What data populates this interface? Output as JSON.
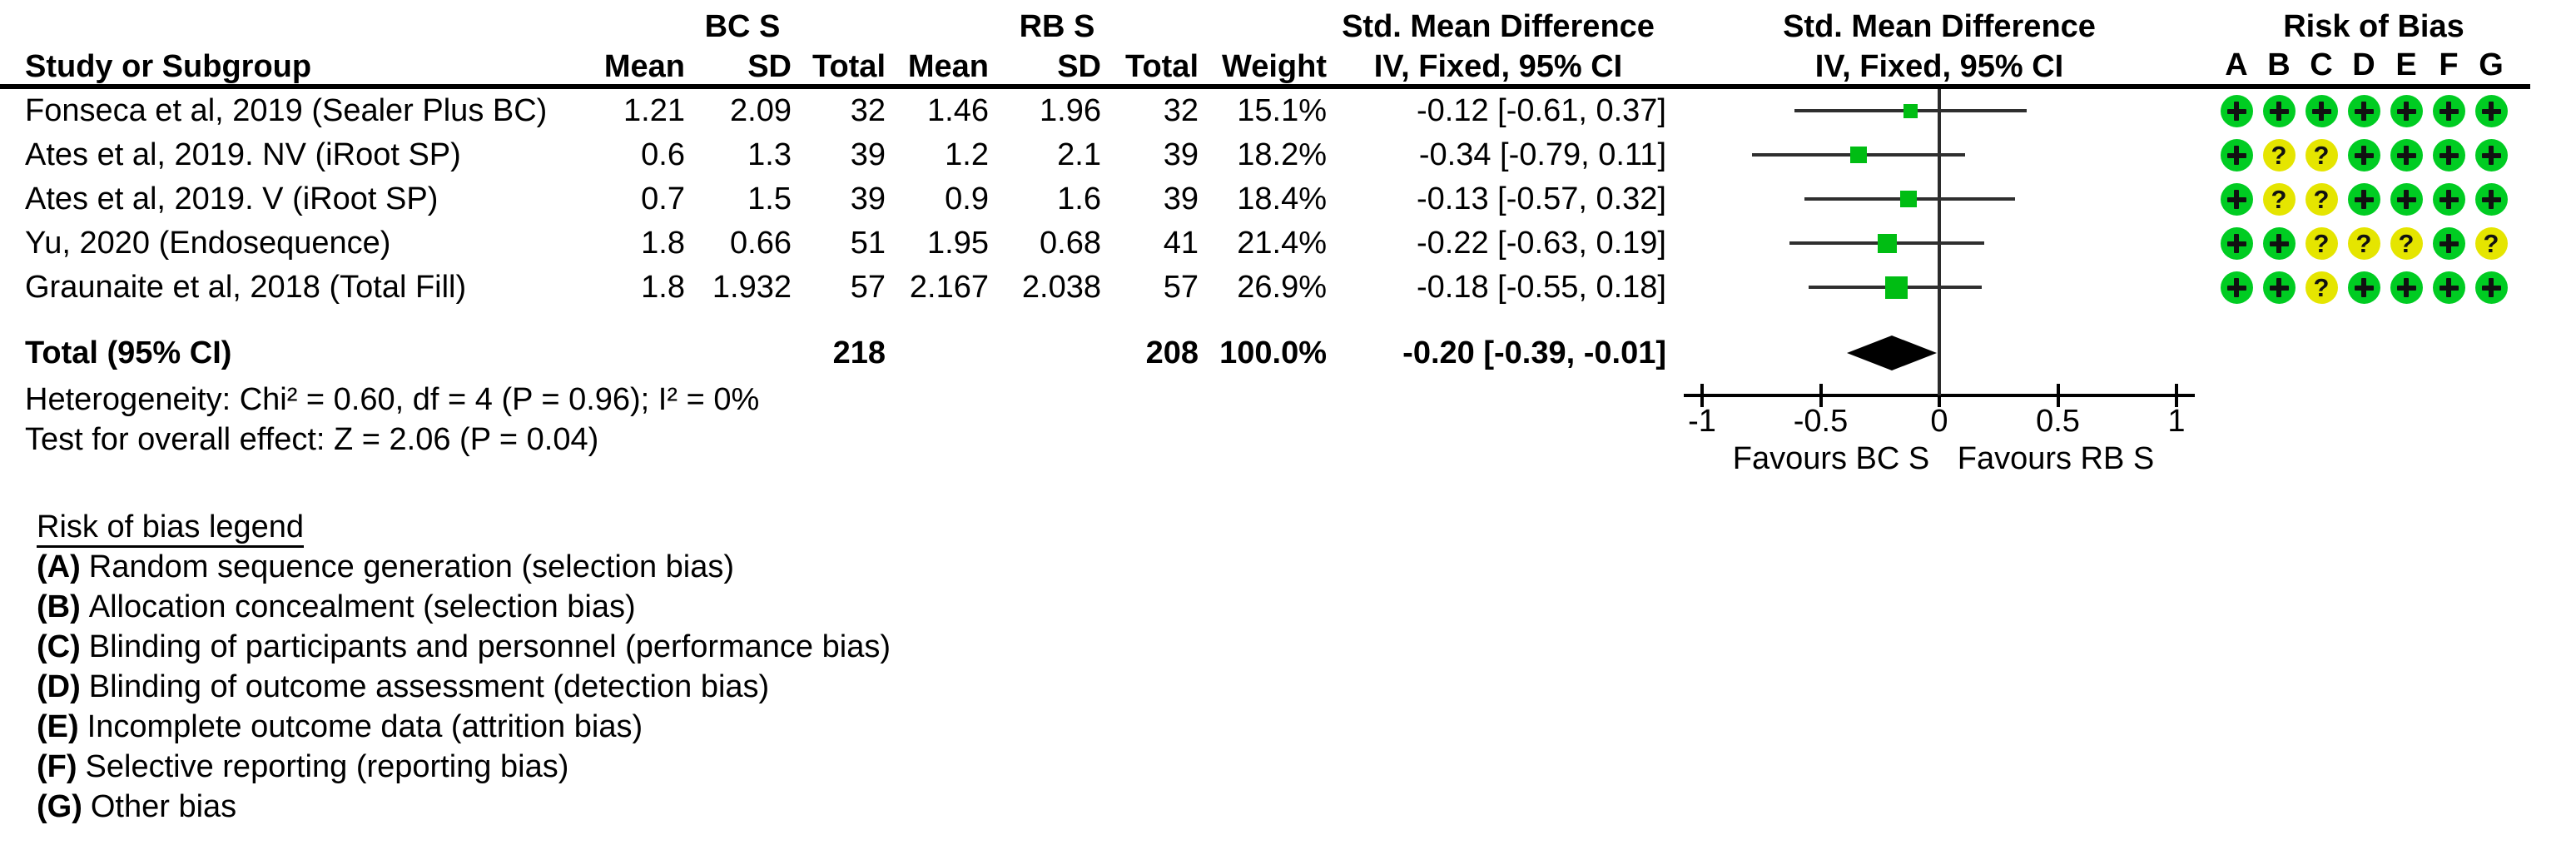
{
  "header": {
    "group1": "BC S",
    "group2": "RB S",
    "smd": "Std. Mean Difference",
    "method": "IV, Fixed, 95% CI",
    "study": "Study or Subgroup",
    "mean": "Mean",
    "sd": "SD",
    "total": "Total",
    "weight": "Weight",
    "rob_title": "Risk of Bias",
    "rob_letters": [
      "A",
      "B",
      "C",
      "D",
      "E",
      "F",
      "G"
    ]
  },
  "studies": [
    {
      "name": "Fonseca et al, 2019 (Sealer Plus BC)",
      "mean1": "1.21",
      "sd1": "2.09",
      "total1": "32",
      "mean2": "1.46",
      "sd2": "1.96",
      "total2": "32",
      "weight": "15.1%",
      "ci_text": "-0.12 [-0.61, 0.37]",
      "smd": -0.12,
      "ci_low": -0.61,
      "ci_high": 0.37,
      "weight_pct": 15.1,
      "rob": [
        "low",
        "low",
        "low",
        "low",
        "low",
        "low",
        "low"
      ]
    },
    {
      "name": "Ates et al, 2019. NV (iRoot SP)",
      "mean1": "0.6",
      "sd1": "1.3",
      "total1": "39",
      "mean2": "1.2",
      "sd2": "2.1",
      "total2": "39",
      "weight": "18.2%",
      "ci_text": "-0.34 [-0.79, 0.11]",
      "smd": -0.34,
      "ci_low": -0.79,
      "ci_high": 0.11,
      "weight_pct": 18.2,
      "rob": [
        "low",
        "unclear",
        "unclear",
        "low",
        "low",
        "low",
        "low"
      ]
    },
    {
      "name": "Ates et al, 2019. V (iRoot SP)",
      "mean1": "0.7",
      "sd1": "1.5",
      "total1": "39",
      "mean2": "0.9",
      "sd2": "1.6",
      "total2": "39",
      "weight": "18.4%",
      "ci_text": "-0.13 [-0.57, 0.32]",
      "smd": -0.13,
      "ci_low": -0.57,
      "ci_high": 0.32,
      "weight_pct": 18.4,
      "rob": [
        "low",
        "unclear",
        "unclear",
        "low",
        "low",
        "low",
        "low"
      ]
    },
    {
      "name": "Yu, 2020 (Endosequence)",
      "mean1": "1.8",
      "sd1": "0.66",
      "total1": "51",
      "mean2": "1.95",
      "sd2": "0.68",
      "total2": "41",
      "weight": "21.4%",
      "ci_text": "-0.22 [-0.63, 0.19]",
      "smd": -0.22,
      "ci_low": -0.63,
      "ci_high": 0.19,
      "weight_pct": 21.4,
      "rob": [
        "low",
        "low",
        "unclear",
        "unclear",
        "unclear",
        "low",
        "unclear"
      ]
    },
    {
      "name": "Graunaite et al, 2018 (Total Fill)",
      "mean1": "1.8",
      "sd1": "1.932",
      "total1": "57",
      "mean2": "2.167",
      "sd2": "2.038",
      "total2": "57",
      "weight": "26.9%",
      "ci_text": "-0.18 [-0.55, 0.18]",
      "smd": -0.18,
      "ci_low": -0.55,
      "ci_high": 0.18,
      "weight_pct": 26.9,
      "rob": [
        "low",
        "low",
        "unclear",
        "low",
        "low",
        "low",
        "low"
      ]
    }
  ],
  "total": {
    "label": "Total (95% CI)",
    "total1": "218",
    "total2": "208",
    "weight": "100.0%",
    "ci_text": "-0.20 [-0.39, -0.01]",
    "smd": -0.2,
    "ci_low": -0.39,
    "ci_high": -0.01
  },
  "heterogeneity": "Heterogeneity: Chi² = 0.60, df = 4 (P = 0.96); I² = 0%",
  "overall_effect": "Test for overall effect: Z = 2.06 (P = 0.04)",
  "axis": {
    "min": -1,
    "max": 1,
    "ticks": [
      -1,
      -0.5,
      0,
      0.5,
      1
    ],
    "tick_labels": [
      "-1",
      "-0.5",
      "0",
      "0.5",
      "1"
    ],
    "favours_left": "Favours BC S",
    "favours_right": "Favours RB S"
  },
  "rob_symbols": {
    "low": "+",
    "unclear": "?"
  },
  "colors": {
    "low_risk": "#00CC22",
    "unclear_risk": "#E5E500",
    "marker_green": "#00BD13",
    "diamond": "#000000",
    "text": "#000000"
  },
  "rob_legend": {
    "title": "Risk of bias legend",
    "items": [
      {
        "tag": "(A)",
        "text": "Random sequence generation (selection bias)"
      },
      {
        "tag": "(B)",
        "text": "Allocation concealment (selection bias)"
      },
      {
        "tag": "(C)",
        "text": "Blinding of participants and personnel (performance bias)"
      },
      {
        "tag": "(D)",
        "text": "Blinding of outcome assessment (detection bias)"
      },
      {
        "tag": "(E)",
        "text": "Incomplete outcome data (attrition bias)"
      },
      {
        "tag": "(F)",
        "text": "Selective reporting (reporting bias)"
      },
      {
        "tag": "(G)",
        "text": "Other bias"
      }
    ]
  },
  "chart_data": {
    "type": "forest",
    "title": "Std. Mean Difference, IV, Fixed, 95% CI — BC S vs RB S",
    "effect_measure": "Std. Mean Difference",
    "model": "IV, Fixed, 95% CI",
    "groups": [
      "BC S",
      "RB S"
    ],
    "studies": [
      "Fonseca et al, 2019 (Sealer Plus BC)",
      "Ates et al, 2019. NV (iRoot SP)",
      "Ates et al, 2019. V (iRoot SP)",
      "Yu, 2020 (Endosequence)",
      "Graunaite et al, 2018 (Total Fill)"
    ],
    "bc_mean": [
      1.21,
      0.6,
      0.7,
      1.8,
      1.8
    ],
    "bc_sd": [
      2.09,
      1.3,
      1.5,
      0.66,
      1.932
    ],
    "bc_n": [
      32,
      39,
      39,
      51,
      57
    ],
    "rb_mean": [
      1.46,
      1.2,
      0.9,
      1.95,
      2.167
    ],
    "rb_sd": [
      1.96,
      2.1,
      1.6,
      0.68,
      2.038
    ],
    "rb_n": [
      32,
      39,
      39,
      41,
      57
    ],
    "weights_pct": [
      15.1,
      18.2,
      18.4,
      21.4,
      26.9
    ],
    "smd": [
      -0.12,
      -0.34,
      -0.13,
      -0.22,
      -0.18
    ],
    "ci_low": [
      -0.61,
      -0.79,
      -0.57,
      -0.63,
      -0.55
    ],
    "ci_high": [
      0.37,
      0.11,
      0.32,
      0.19,
      0.18
    ],
    "total": {
      "bc_n": 218,
      "rb_n": 208,
      "weight_pct": 100.0,
      "smd": -0.2,
      "ci": [
        -0.39,
        -0.01
      ]
    },
    "heterogeneity": {
      "chi2": 0.6,
      "df": 4,
      "p": 0.96,
      "i2_pct": 0
    },
    "overall_effect": {
      "z": 2.06,
      "p": 0.04
    },
    "xlim": [
      -1,
      1
    ],
    "x_ticks": [
      -1,
      -0.5,
      0,
      0.5,
      1
    ],
    "favours": {
      "left": "Favours BC S",
      "right": "Favours RB S"
    },
    "risk_of_bias": {
      "domains": [
        "A",
        "B",
        "C",
        "D",
        "E",
        "F",
        "G"
      ],
      "ratings": [
        [
          "low",
          "low",
          "low",
          "low",
          "low",
          "low",
          "low"
        ],
        [
          "low",
          "unclear",
          "unclear",
          "low",
          "low",
          "low",
          "low"
        ],
        [
          "low",
          "unclear",
          "unclear",
          "low",
          "low",
          "low",
          "low"
        ],
        [
          "low",
          "low",
          "unclear",
          "unclear",
          "unclear",
          "low",
          "unclear"
        ],
        [
          "low",
          "low",
          "unclear",
          "low",
          "low",
          "low",
          "low"
        ]
      ]
    }
  }
}
